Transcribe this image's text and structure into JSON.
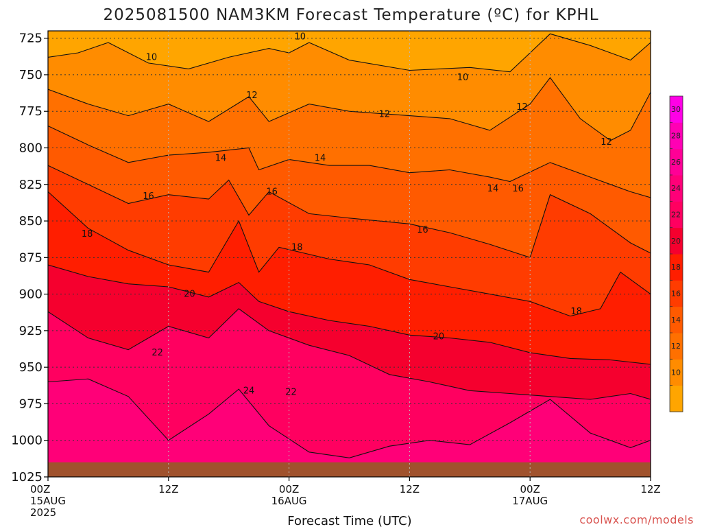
{
  "chart_data": {
    "type": "heatmap",
    "subtype": "filled-contour",
    "title": "2025081500 NAM3KM Forecast Temperature (ºC) for KPHL",
    "xlabel": "Forecast Time (UTC)",
    "ylabel": "",
    "y_scale": "pressure (hPa), increasing downward",
    "ylim": [
      1025,
      720
    ],
    "y_ticks": [
      725,
      750,
      775,
      800,
      825,
      850,
      875,
      900,
      925,
      950,
      975,
      1000,
      1025
    ],
    "x_ticks": [
      {
        "hour": 0,
        "line1": "00Z",
        "line2": "15AUG",
        "line3": "2025"
      },
      {
        "hour": 12,
        "line1": "12Z",
        "line2": "",
        "line3": ""
      },
      {
        "hour": 24,
        "line1": "00Z",
        "line2": "16AUG",
        "line3": ""
      },
      {
        "hour": 36,
        "line1": "12Z",
        "line2": "",
        "line3": ""
      },
      {
        "hour": 48,
        "line1": "00Z",
        "line2": "17AUG",
        "line3": ""
      },
      {
        "hour": 60,
        "line1": "12Z",
        "line2": "",
        "line3": ""
      }
    ],
    "xlim": [
      0,
      60
    ],
    "grid": true,
    "colorbar": {
      "placement": "right",
      "levels": [
        8,
        10,
        12,
        14,
        16,
        18,
        20,
        22,
        24,
        26,
        28,
        30,
        32
      ],
      "tick_labels": [
        "10",
        "12",
        "14",
        "16",
        "18",
        "20",
        "22",
        "24",
        "26",
        "28",
        "30"
      ],
      "colors": [
        "#ffa500",
        "#ff8c00",
        "#ff7000",
        "#ff5a00",
        "#ff3c00",
        "#ff1e00",
        "#f5002e",
        "#ff0060",
        "#ff0078",
        "#ff0096",
        "#ff00b4",
        "#ff00e6"
      ]
    },
    "ground_color": "#a0522d",
    "ground_pressure_hpa": 1015,
    "isotherms": [
      {
        "temp": 10,
        "points": [
          [
            0,
            738
          ],
          [
            3,
            735
          ],
          [
            6,
            728
          ],
          [
            10,
            742
          ],
          [
            14,
            746
          ],
          [
            18,
            738
          ],
          [
            22,
            732
          ],
          [
            24,
            735
          ],
          [
            26,
            728
          ],
          [
            30,
            740
          ],
          [
            36,
            747
          ],
          [
            42,
            745
          ],
          [
            46,
            748
          ],
          [
            50,
            722
          ],
          [
            54,
            730
          ],
          [
            58,
            740
          ],
          [
            60,
            728
          ]
        ]
      },
      {
        "temp": 12,
        "points": [
          [
            0,
            760
          ],
          [
            4,
            770
          ],
          [
            8,
            778
          ],
          [
            12,
            770
          ],
          [
            16,
            782
          ],
          [
            20,
            765
          ],
          [
            22,
            782
          ],
          [
            26,
            770
          ],
          [
            30,
            775
          ],
          [
            36,
            778
          ],
          [
            40,
            780
          ],
          [
            44,
            788
          ],
          [
            48,
            770
          ],
          [
            50,
            752
          ],
          [
            53,
            780
          ],
          [
            56,
            795
          ],
          [
            58,
            788
          ],
          [
            60,
            762
          ]
        ]
      },
      {
        "temp": 14,
        "points": [
          [
            0,
            785
          ],
          [
            4,
            798
          ],
          [
            8,
            810
          ],
          [
            12,
            805
          ],
          [
            16,
            803
          ],
          [
            20,
            800
          ],
          [
            21,
            815
          ],
          [
            24,
            808
          ],
          [
            28,
            812
          ],
          [
            32,
            812
          ],
          [
            36,
            817
          ],
          [
            40,
            815
          ],
          [
            44,
            820
          ],
          [
            46,
            823
          ],
          [
            50,
            810
          ],
          [
            54,
            820
          ],
          [
            58,
            830
          ],
          [
            60,
            834
          ]
        ]
      },
      {
        "temp": 16,
        "points": [
          [
            0,
            812
          ],
          [
            4,
            825
          ],
          [
            8,
            838
          ],
          [
            12,
            832
          ],
          [
            16,
            835
          ],
          [
            18,
            822
          ],
          [
            20,
            846
          ],
          [
            22,
            830
          ],
          [
            26,
            845
          ],
          [
            30,
            848
          ],
          [
            36,
            852
          ],
          [
            40,
            858
          ],
          [
            44,
            866
          ],
          [
            48,
            875
          ],
          [
            50,
            832
          ],
          [
            54,
            845
          ],
          [
            58,
            865
          ],
          [
            60,
            872
          ]
        ]
      },
      {
        "temp": 18,
        "points": [
          [
            0,
            830
          ],
          [
            4,
            855
          ],
          [
            8,
            870
          ],
          [
            12,
            880
          ],
          [
            16,
            885
          ],
          [
            19,
            850
          ],
          [
            21,
            885
          ],
          [
            23,
            868
          ],
          [
            28,
            876
          ],
          [
            32,
            880
          ],
          [
            36,
            890
          ],
          [
            40,
            895
          ],
          [
            44,
            900
          ],
          [
            48,
            905
          ],
          [
            52,
            915
          ],
          [
            55,
            910
          ],
          [
            57,
            885
          ],
          [
            60,
            900
          ]
        ]
      },
      {
        "temp": 20,
        "points": [
          [
            0,
            880
          ],
          [
            4,
            888
          ],
          [
            8,
            893
          ],
          [
            12,
            895
          ],
          [
            16,
            902
          ],
          [
            19,
            892
          ],
          [
            21,
            905
          ],
          [
            24,
            912
          ],
          [
            28,
            918
          ],
          [
            32,
            922
          ],
          [
            36,
            928
          ],
          [
            40,
            930
          ],
          [
            44,
            933
          ],
          [
            48,
            940
          ],
          [
            52,
            944
          ],
          [
            56,
            945
          ],
          [
            60,
            948
          ]
        ]
      },
      {
        "temp": 22,
        "points": [
          [
            0,
            912
          ],
          [
            4,
            930
          ],
          [
            8,
            938
          ],
          [
            12,
            922
          ],
          [
            16,
            930
          ],
          [
            19,
            910
          ],
          [
            22,
            925
          ],
          [
            26,
            935
          ],
          [
            30,
            942
          ],
          [
            34,
            955
          ],
          [
            38,
            960
          ],
          [
            42,
            966
          ],
          [
            46,
            968
          ],
          [
            50,
            970
          ],
          [
            54,
            972
          ],
          [
            58,
            968
          ],
          [
            60,
            972
          ]
        ]
      },
      {
        "temp": 24,
        "points": [
          [
            0,
            960
          ],
          [
            4,
            958
          ],
          [
            8,
            970
          ],
          [
            12,
            1000
          ],
          [
            16,
            982
          ],
          [
            19,
            965
          ],
          [
            22,
            990
          ],
          [
            26,
            1008
          ],
          [
            30,
            1012
          ],
          [
            34,
            1004
          ],
          [
            38,
            1000
          ],
          [
            42,
            1003
          ],
          [
            46,
            988
          ],
          [
            50,
            972
          ],
          [
            54,
            995
          ],
          [
            58,
            1005
          ],
          [
            60,
            1000
          ]
        ]
      }
    ],
    "contour_labels": [
      {
        "text": "10",
        "hour": 25.1,
        "hpa": 724
      },
      {
        "text": "10",
        "hour": 10.3,
        "hpa": 738
      },
      {
        "text": "10",
        "hour": 41.3,
        "hpa": 752
      },
      {
        "text": "12",
        "hour": 20.3,
        "hpa": 764
      },
      {
        "text": "12",
        "hour": 47.2,
        "hpa": 772
      },
      {
        "text": "12",
        "hour": 33.5,
        "hpa": 777
      },
      {
        "text": "12",
        "hour": 55.6,
        "hpa": 796
      },
      {
        "text": "14",
        "hour": 17.2,
        "hpa": 807
      },
      {
        "text": "14",
        "hour": 27.1,
        "hpa": 807
      },
      {
        "text": "14",
        "hour": 44.3,
        "hpa": 828
      },
      {
        "text": "16",
        "hour": 10.0,
        "hpa": 833
      },
      {
        "text": "16",
        "hour": 22.3,
        "hpa": 830
      },
      {
        "text": "16",
        "hour": 46.8,
        "hpa": 828
      },
      {
        "text": "16",
        "hour": 37.3,
        "hpa": 856
      },
      {
        "text": "18",
        "hour": 3.9,
        "hpa": 859
      },
      {
        "text": "18",
        "hour": 24.8,
        "hpa": 868
      },
      {
        "text": "18",
        "hour": 52.6,
        "hpa": 912
      },
      {
        "text": "20",
        "hour": 14.1,
        "hpa": 900
      },
      {
        "text": "20",
        "hour": 38.9,
        "hpa": 929
      },
      {
        "text": "22",
        "hour": 10.9,
        "hpa": 940
      },
      {
        "text": "22",
        "hour": 24.2,
        "hpa": 967
      },
      {
        "text": "24",
        "hour": 20.0,
        "hpa": 966
      }
    ]
  },
  "credit": "coolwx.com/models"
}
